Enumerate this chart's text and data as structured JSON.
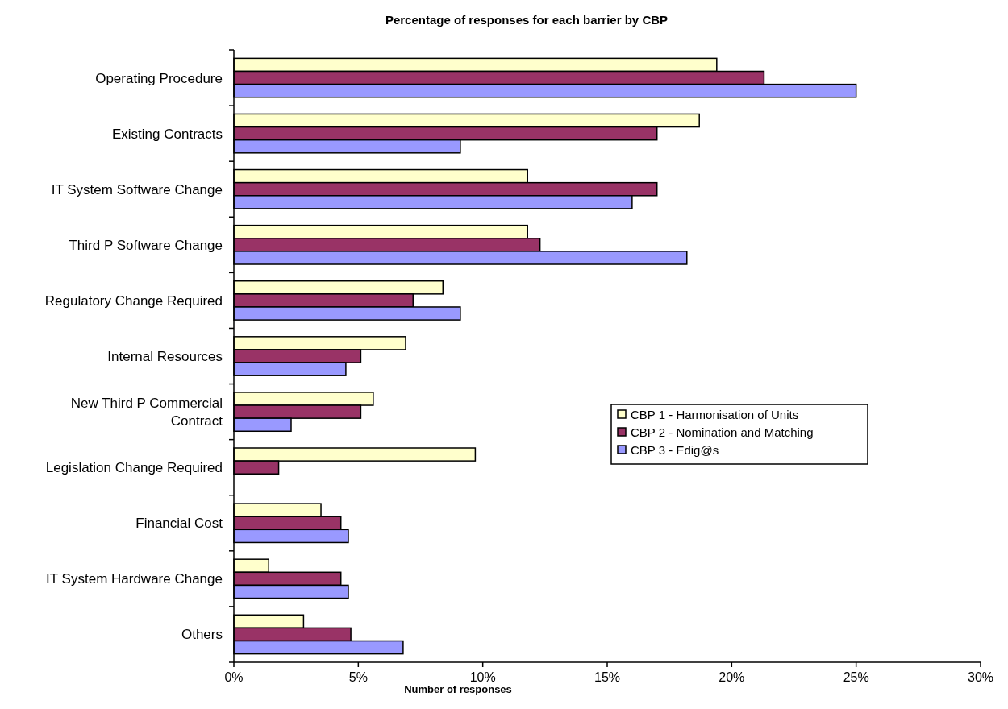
{
  "chart_data": {
    "type": "bar",
    "orientation": "horizontal",
    "title": "Percentage of responses for each barrier by CBP",
    "xlabel": "Number of responses",
    "categories": [
      "Operating Procedure",
      "Existing Contracts",
      "IT System Software Change ",
      "Third P Software Change",
      "Regulatory Change Required",
      "Internal Resources",
      "New Third P Commercial Contract",
      "Legislation Change Required",
      "Financial Cost",
      "IT System Hardware Change",
      "Others"
    ],
    "series": [
      {
        "name": "CBP 1 - Harmonisation of Units",
        "color": "#ffffcc",
        "values": [
          19.4,
          18.7,
          11.8,
          11.8,
          8.4,
          6.9,
          5.6,
          9.7,
          3.5,
          1.4,
          2.8
        ]
      },
      {
        "name": "CBP 2 - Nomination and Matching",
        "color": "#993366",
        "values": [
          21.3,
          17.0,
          17.0,
          12.3,
          7.2,
          5.1,
          5.1,
          1.8,
          4.3,
          4.3,
          4.7
        ]
      },
      {
        "name": "CBP 3 - Edig@s",
        "color": "#9999ff",
        "values": [
          25.0,
          9.1,
          16.0,
          18.2,
          9.1,
          4.5,
          2.3,
          null,
          4.6,
          4.6,
          6.8
        ]
      }
    ],
    "xlim": [
      0,
      30
    ],
    "xticks": [
      {
        "value": 0,
        "label": "0%"
      },
      {
        "value": 5,
        "label": "5%"
      },
      {
        "value": 10,
        "label": "10%"
      },
      {
        "value": 15,
        "label": "15%"
      },
      {
        "value": 20,
        "label": "20%"
      },
      {
        "value": 25,
        "label": "25%"
      },
      {
        "value": 30,
        "label": "30%"
      }
    ],
    "grid": false,
    "legend": "right"
  }
}
